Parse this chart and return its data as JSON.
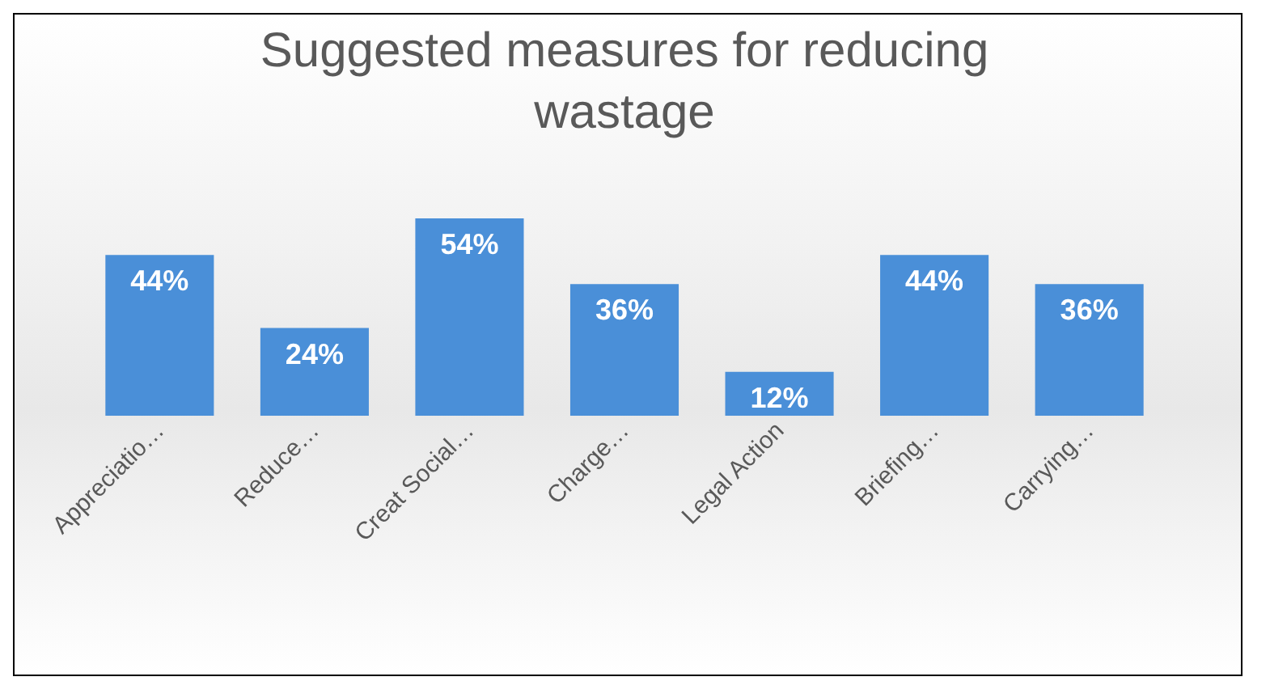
{
  "chart_data": {
    "type": "bar",
    "title": "Suggested measures for reducing wastage",
    "categories": [
      "Appreciatio…",
      "Reduce…",
      "Creat Social…",
      "Charge…",
      "Legal Action",
      "Briefing…",
      "Carrying…"
    ],
    "values": [
      44,
      24,
      54,
      36,
      12,
      44,
      36
    ],
    "value_labels": [
      "44%",
      "24%",
      "54%",
      "36%",
      "12%",
      "44%",
      "36%"
    ],
    "color": "#4a8fd8",
    "grid": false
  }
}
